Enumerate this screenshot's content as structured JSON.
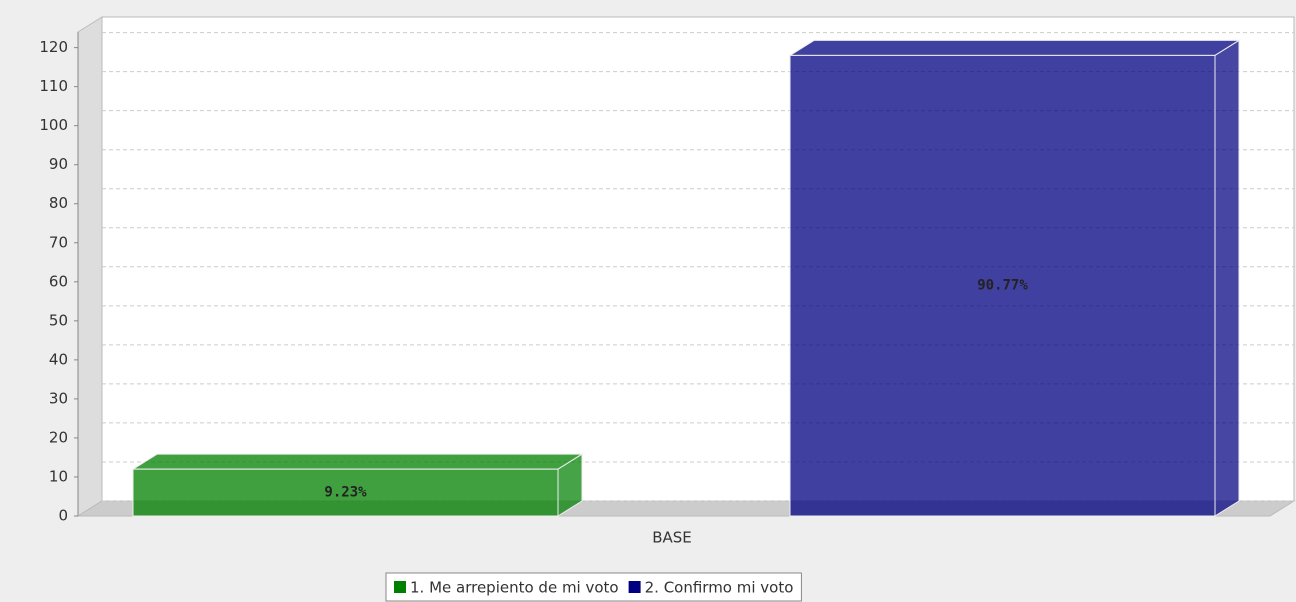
{
  "chart_data": {
    "type": "bar",
    "categories": [
      "BASE"
    ],
    "series": [
      {
        "name": "1. Me arrepiento de mi voto",
        "color": "#008000",
        "values": [
          12
        ]
      },
      {
        "name": "2. Confirmo mi voto",
        "color": "#000080",
        "values": [
          118
        ]
      }
    ],
    "share_labels": [
      "9.23%",
      "90.77%"
    ],
    "ylim": [
      0,
      124
    ],
    "yticks": [
      0,
      10,
      20,
      30,
      40,
      50,
      60,
      70,
      80,
      90,
      100,
      110,
      120
    ],
    "grid": true,
    "legend": "bottom"
  }
}
